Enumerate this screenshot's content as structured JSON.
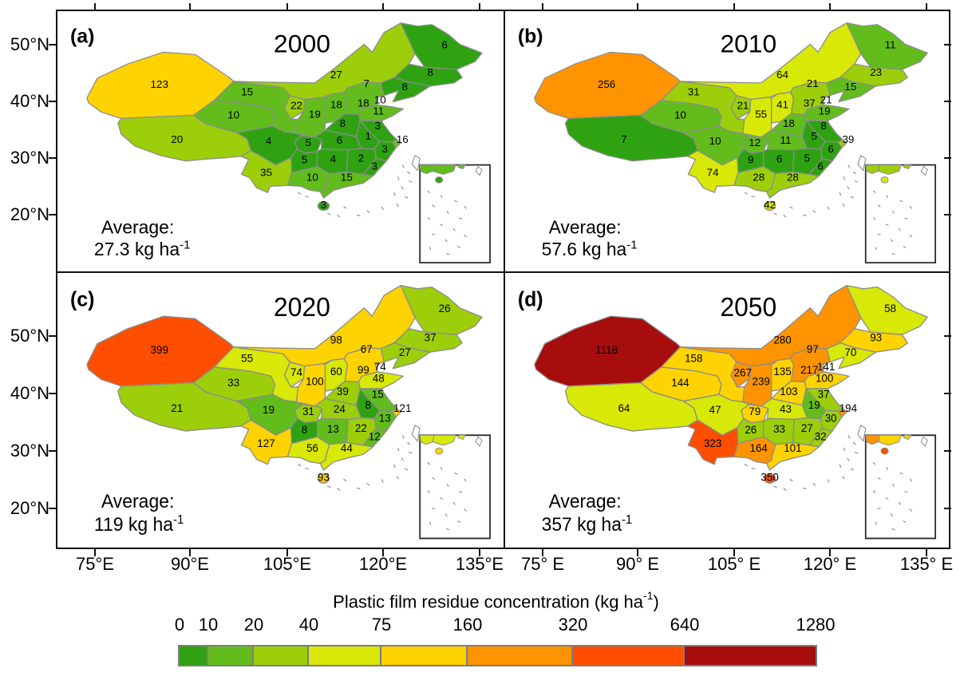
{
  "figure": {
    "panels": [
      {
        "letter": "(a)",
        "year": "2000",
        "average_label": "Average:",
        "average_value": "27.3 kg ha",
        "average_exp": "-1"
      },
      {
        "letter": "(b)",
        "year": "2010",
        "average_label": "Average:",
        "average_value": "57.6 kg ha",
        "average_exp": "-1"
      },
      {
        "letter": "(c)",
        "year": "2020",
        "average_label": "Average:",
        "average_value": "119 kg ha",
        "average_exp": "-1"
      },
      {
        "letter": "(d)",
        "year": "2050",
        "average_label": "Average:",
        "average_value": "357 kg ha",
        "average_exp": "-1"
      }
    ],
    "axes": {
      "lat_labels": [
        "50°N",
        "40°N",
        "30°N",
        "20°N"
      ],
      "lon_labels_left": [
        "75°E",
        "90°E",
        "105°E",
        "120°E",
        "135°E"
      ],
      "lon_labels_right": [
        "75° E",
        "90° E",
        "105° E",
        "120° E",
        "135° E"
      ]
    },
    "legend": {
      "title_main": "Plastic film residue concentration (kg ha",
      "title_exp": "-1",
      "title_close": ")",
      "tick_labels": [
        "0",
        "10",
        "20",
        "40",
        "75",
        "160",
        "320",
        "640",
        "1280"
      ],
      "breaks": [
        0,
        10,
        20,
        40,
        75,
        160,
        320,
        640,
        1280
      ],
      "colors": [
        "#2FA212",
        "#62BD1C",
        "#9CCF0A",
        "#D8E807",
        "#FFD300",
        "#FF9400",
        "#FF4E00",
        "#A70D0D"
      ]
    }
  },
  "chart_data": {
    "type": "choropleth",
    "title": "Plastic film residue concentration (kg ha⁻¹)",
    "unit": "kg ha⁻¹",
    "geography": "Provinces of China",
    "years": [
      "2000",
      "2010",
      "2020",
      "2050"
    ],
    "averages_kg_ha": [
      27.3,
      57.6,
      119,
      357
    ],
    "color_scale": {
      "breaks": [
        0,
        10,
        20,
        40,
        75,
        160,
        320,
        640,
        1280
      ],
      "colors": [
        "#2FA212",
        "#62BD1C",
        "#9CCF0A",
        "#D8E807",
        "#FFD300",
        "#FF9400",
        "#FF4E00",
        "#A70D0D"
      ]
    },
    "regions": [
      {
        "id": "xinjiang",
        "name": "Xinjiang",
        "values": [
          123,
          256,
          399,
          1118
        ]
      },
      {
        "id": "xizang",
        "name": "Tibet",
        "values": [
          20,
          7,
          21,
          64
        ]
      },
      {
        "id": "qinghai",
        "name": "Qinghai",
        "values": [
          10,
          10,
          33,
          144
        ]
      },
      {
        "id": "gansu",
        "name": "Gansu",
        "values": [
          15,
          31,
          55,
          158
        ]
      },
      {
        "id": "neimenggu",
        "name": "Inner Mongolia",
        "values": [
          27,
          64,
          98,
          280
        ]
      },
      {
        "id": "heilongjiang",
        "name": "Heilongjiang",
        "values": [
          6,
          11,
          26,
          58
        ]
      },
      {
        "id": "jilin",
        "name": "Jilin",
        "values": [
          8,
          23,
          37,
          93
        ]
      },
      {
        "id": "liaoning",
        "name": "Liaoning",
        "values": [
          8,
          15,
          27,
          70
        ]
      },
      {
        "id": "beijing",
        "name": "Beijing",
        "values": [
          7,
          21,
          67,
          97
        ]
      },
      {
        "id": "tianjin",
        "name": "Tianjin",
        "values": [
          10,
          21,
          74,
          141
        ]
      },
      {
        "id": "hebei",
        "name": "Hebei",
        "values": [
          18,
          37,
          99,
          217
        ]
      },
      {
        "id": "shanxi",
        "name": "Shanxi",
        "values": [
          18,
          41,
          60,
          135
        ]
      },
      {
        "id": "shandong",
        "name": "Shandong",
        "values": [
          11,
          19,
          48,
          100
        ]
      },
      {
        "id": "ningxia",
        "name": "Ningxia",
        "values": [
          22,
          21,
          74,
          267
        ]
      },
      {
        "id": "shaanxi",
        "name": "Shaanxi",
        "values": [
          19,
          55,
          100,
          239
        ]
      },
      {
        "id": "henan",
        "name": "Henan",
        "values": [
          8,
          18,
          39,
          103
        ]
      },
      {
        "id": "jiangsu",
        "name": "Jiangsu",
        "values": [
          3,
          8,
          15,
          37
        ]
      },
      {
        "id": "anhui",
        "name": "Anhui",
        "values": [
          1,
          5,
          8,
          19
        ]
      },
      {
        "id": "shanghai",
        "name": "Shanghai",
        "values": [
          16,
          39,
          121,
          194
        ]
      },
      {
        "id": "hubei",
        "name": "Hubei",
        "values": [
          6,
          11,
          24,
          43
        ]
      },
      {
        "id": "zhejiang",
        "name": "Zhejiang",
        "values": [
          3,
          6,
          13,
          30
        ]
      },
      {
        "id": "sichuan",
        "name": "Sichuan",
        "values": [
          4,
          10,
          19,
          47
        ]
      },
      {
        "id": "chongqing",
        "name": "Chongqing",
        "values": [
          5,
          12,
          31,
          79
        ]
      },
      {
        "id": "hunan",
        "name": "Hunan",
        "values": [
          4,
          6,
          13,
          33
        ]
      },
      {
        "id": "jiangxi",
        "name": "Jiangxi",
        "values": [
          2,
          5,
          22,
          27
        ]
      },
      {
        "id": "fujian",
        "name": "Fujian",
        "values": [
          3,
          6,
          12,
          32
        ]
      },
      {
        "id": "guizhou",
        "name": "Guizhou",
        "values": [
          5,
          9,
          8,
          26
        ]
      },
      {
        "id": "yunnan",
        "name": "Yunnan",
        "values": [
          35,
          74,
          127,
          323
        ]
      },
      {
        "id": "guangxi",
        "name": "Guangxi",
        "values": [
          10,
          28,
          56,
          164
        ]
      },
      {
        "id": "guangdong",
        "name": "Guangdong",
        "values": [
          15,
          28,
          44,
          101
        ]
      },
      {
        "id": "hainan",
        "name": "Hainan",
        "values": [
          3,
          42,
          93,
          350
        ]
      }
    ]
  }
}
